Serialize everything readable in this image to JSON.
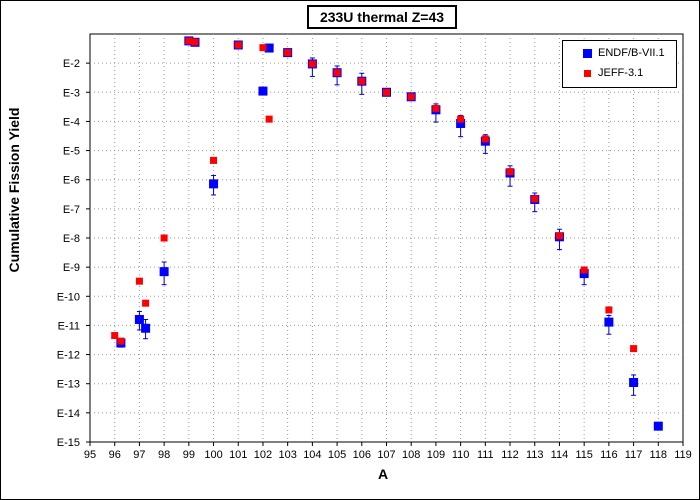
{
  "chart_data": {
    "type": "scatter",
    "title": "233U thermal Z=43",
    "xlabel": "A",
    "ylabel": "Cumulative Fission Yield",
    "xlim": [
      95,
      119
    ],
    "yscale": "log",
    "ylim": [
      1e-15,
      0.1
    ],
    "grid": true,
    "legend_position": "top-right",
    "x_ticks": [
      "95",
      "96",
      "97",
      "98",
      "99",
      "100",
      "101",
      "102",
      "103",
      "104",
      "105",
      "106",
      "107",
      "108",
      "109",
      "110",
      "111",
      "112",
      "113",
      "114",
      "115",
      "116",
      "117",
      "118",
      "119"
    ],
    "y_ticks": [
      "E-2",
      "E-3",
      "E-4",
      "E-5",
      "E-6",
      "E-7",
      "E-8",
      "E-9",
      "E-10",
      "E-11",
      "E-12",
      "E-13",
      "E-14",
      "E-15"
    ],
    "series": [
      {
        "name": "ENDF/B-VII.1",
        "color": "#0000ff",
        "marker": "square",
        "points": [
          {
            "x": 96.25,
            "y": 2.5e-12,
            "lo": 1.8e-12,
            "hi": 3.2e-12
          },
          {
            "x": 97.0,
            "y": 1.6e-11,
            "lo": 7e-12,
            "hi": 3e-11
          },
          {
            "x": 97.25,
            "y": 8e-12,
            "lo": 3.5e-12,
            "hi": 1.6e-11
          },
          {
            "x": 98.0,
            "y": 7e-10,
            "lo": 2.5e-10,
            "hi": 1.5e-09
          },
          {
            "x": 99.0,
            "y": 0.058,
            "lo": 0.055,
            "hi": 0.061
          },
          {
            "x": 99.25,
            "y": 0.052,
            "lo": 0.049,
            "hi": 0.055
          },
          {
            "x": 100.0,
            "y": 7.2e-07,
            "lo": 3e-07,
            "hi": 1.4e-06
          },
          {
            "x": 101.0,
            "y": 0.042,
            "lo": 0.039,
            "hi": 0.045
          },
          {
            "x": 102.0,
            "y": 0.0011,
            "lo": 0.001,
            "hi": 0.0012
          },
          {
            "x": 102.25,
            "y": 0.033,
            "lo": 0.031,
            "hi": 0.035
          },
          {
            "x": 103.0,
            "y": 0.023,
            "lo": 0.021,
            "hi": 0.025
          },
          {
            "x": 104.0,
            "y": 0.0094,
            "lo": 0.0035,
            "hi": 0.015
          },
          {
            "x": 105.0,
            "y": 0.0047,
            "lo": 0.0018,
            "hi": 0.008
          },
          {
            "x": 106.0,
            "y": 0.0024,
            "lo": 0.00085,
            "hi": 0.0045
          },
          {
            "x": 107.0,
            "y": 0.001,
            "lo": 0.00095,
            "hi": 0.00105
          },
          {
            "x": 108.0,
            "y": 0.0007,
            "lo": 0.00065,
            "hi": 0.00075
          },
          {
            "x": 109.0,
            "y": 0.00025,
            "lo": 9.5e-05,
            "hi": 0.0004
          },
          {
            "x": 110.0,
            "y": 8.5e-05,
            "lo": 3e-05,
            "hi": 0.00016
          },
          {
            "x": 111.0,
            "y": 2.1e-05,
            "lo": 8e-06,
            "hi": 3.5e-05
          },
          {
            "x": 112.0,
            "y": 1.7e-06,
            "lo": 6e-07,
            "hi": 3e-06
          },
          {
            "x": 113.0,
            "y": 2.1e-07,
            "lo": 8e-08,
            "hi": 3.5e-07
          },
          {
            "x": 114.0,
            "y": 1.1e-08,
            "lo": 4e-09,
            "hi": 2e-08
          },
          {
            "x": 115.0,
            "y": 6e-10,
            "lo": 2.5e-10,
            "hi": 1e-09
          },
          {
            "x": 116.0,
            "y": 1.3e-11,
            "lo": 5e-12,
            "hi": 2.2e-11
          },
          {
            "x": 117.0,
            "y": 1.1e-13,
            "lo": 4e-14,
            "hi": 2e-13
          },
          {
            "x": 118.0,
            "y": 3.5e-15,
            "lo": 3e-15,
            "hi": 4e-15
          }
        ]
      },
      {
        "name": "JEFF-3.1",
        "color": "#ff0000",
        "marker": "square",
        "points": [
          {
            "x": 96.0,
            "y": 4.5e-12
          },
          {
            "x": 96.25,
            "y": 2.9e-12
          },
          {
            "x": 97.0,
            "y": 3.3e-10
          },
          {
            "x": 97.25,
            "y": 5.8e-11
          },
          {
            "x": 98.0,
            "y": 1e-08
          },
          {
            "x": 99.0,
            "y": 0.058
          },
          {
            "x": 99.25,
            "y": 0.053
          },
          {
            "x": 100.0,
            "y": 4.6e-06
          },
          {
            "x": 101.0,
            "y": 0.042
          },
          {
            "x": 102.0,
            "y": 0.034
          },
          {
            "x": 102.25,
            "y": 0.00012
          },
          {
            "x": 103.0,
            "y": 0.023
          },
          {
            "x": 104.0,
            "y": 0.0094
          },
          {
            "x": 105.0,
            "y": 0.0047
          },
          {
            "x": 106.0,
            "y": 0.0024
          },
          {
            "x": 107.0,
            "y": 0.001
          },
          {
            "x": 108.0,
            "y": 0.0007
          },
          {
            "x": 109.0,
            "y": 0.00028
          },
          {
            "x": 110.0,
            "y": 0.00012
          },
          {
            "x": 111.0,
            "y": 2.5e-05
          },
          {
            "x": 112.0,
            "y": 1.9e-06
          },
          {
            "x": 113.0,
            "y": 2.2e-07
          },
          {
            "x": 114.0,
            "y": 1.2e-08
          },
          {
            "x": 115.0,
            "y": 8e-10
          },
          {
            "x": 116.0,
            "y": 3.4e-11
          },
          {
            "x": 117.0,
            "y": 1.6e-12
          }
        ]
      }
    ]
  }
}
